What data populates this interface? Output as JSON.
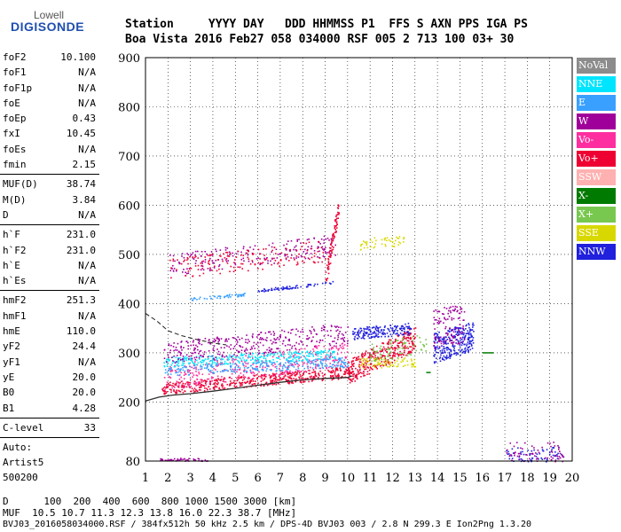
{
  "logo": {
    "top": "Lowell",
    "main": "DIGISONDE"
  },
  "header": {
    "line1": "Station     YYYY DAY   DDD HHMMSS P1  FFS S AXN PPS IGA PS",
    "line2": "Boa Vista 2016 Feb27 058 034000 RSF 005 2 713 100 03+ 30"
  },
  "sidebar": {
    "group1": [
      {
        "k": "foF2",
        "v": "10.100"
      },
      {
        "k": "foF1",
        "v": "N/A"
      },
      {
        "k": "foF1p",
        "v": "N/A"
      },
      {
        "k": "foE",
        "v": "N/A"
      },
      {
        "k": "foEp",
        "v": "0.43"
      },
      {
        "k": "fxI",
        "v": "10.45"
      },
      {
        "k": "foEs",
        "v": "N/A"
      },
      {
        "k": "fmin",
        "v": "2.15"
      }
    ],
    "group2": [
      {
        "k": "MUF(D)",
        "v": "38.74"
      },
      {
        "k": "M(D)",
        "v": "3.84"
      },
      {
        "k": "D",
        "v": "N/A"
      }
    ],
    "group3": [
      {
        "k": "h`F",
        "v": "231.0"
      },
      {
        "k": "h`F2",
        "v": "231.0"
      },
      {
        "k": "h`E",
        "v": "N/A"
      },
      {
        "k": "h`Es",
        "v": "N/A"
      }
    ],
    "group4": [
      {
        "k": "hmF2",
        "v": "251.3"
      },
      {
        "k": "hmF1",
        "v": "N/A"
      },
      {
        "k": "hmE",
        "v": "110.0"
      },
      {
        "k": "yF2",
        "v": "24.4"
      },
      {
        "k": "yF1",
        "v": "N/A"
      },
      {
        "k": "yE",
        "v": "20.0"
      },
      {
        "k": "B0",
        "v": "20.0"
      },
      {
        "k": "B1",
        "v": "4.28"
      }
    ],
    "clevel": {
      "k": "C-level",
      "v": "33"
    },
    "auto": [
      "Auto:",
      "Artist5",
      "500200"
    ]
  },
  "legend": [
    {
      "label": "NoVal",
      "color": "#8c8c8c"
    },
    {
      "label": "NNE",
      "color": "#00e5ff"
    },
    {
      "label": "E",
      "color": "#3aa0ff"
    },
    {
      "label": "W",
      "color": "#a0009a"
    },
    {
      "label": "Vo-",
      "color": "#ff2ea0"
    },
    {
      "label": "Vo+",
      "color": "#ee0033"
    },
    {
      "label": "SSW",
      "color": "#ffb0b0"
    },
    {
      "label": "X-",
      "color": "#007a00"
    },
    {
      "label": "X+",
      "color": "#78c850"
    },
    {
      "label": "SSE",
      "color": "#d8d800"
    },
    {
      "label": "NNW",
      "color": "#2020dd"
    }
  ],
  "footer": {
    "d_line": "D      100  200  400  600  800 1000 1500 3000 [km]",
    "muf_line": "MUF  10.5 10.7 11.3 12.3 13.8 16.0 22.3 38.7 [MHz]",
    "file_line": "BVJ03_2016058034000.RSF / 384fx512h 50 kHz 2.5 km / DPS-4D BVJ03 003 / 2.8 N 299.3 E Ion2Png 1.3.20"
  },
  "chart_data": {
    "type": "scatter",
    "title": "",
    "xlabel": "",
    "ylabel": "",
    "xlim": [
      1,
      20
    ],
    "ylim": [
      80,
      900
    ],
    "xticks": [
      1,
      2,
      3,
      4,
      5,
      6,
      7,
      8,
      9,
      10,
      11,
      12,
      13,
      14,
      15,
      16,
      17,
      18,
      19,
      20
    ],
    "yticks": [
      200,
      300,
      400,
      500,
      600,
      700,
      800,
      900
    ],
    "ytick_bottom_label": "80",
    "grid": true,
    "clusters": [
      {
        "name": "F2 O-trace low",
        "color": "#ee0033",
        "x": [
          1.7,
          10.2
        ],
        "y0": 228,
        "y1": 262,
        "spread": 12,
        "n": 500
      },
      {
        "name": "F2 O-trace upper",
        "color": "#ff2ea0",
        "x": [
          1.8,
          10.0
        ],
        "y0": 250,
        "y1": 300,
        "spread": 25,
        "n": 350
      },
      {
        "name": "F2 NNE",
        "color": "#00e5ff",
        "x": [
          1.8,
          9.5
        ],
        "y0": 282,
        "y1": 298,
        "spread": 10,
        "n": 300
      },
      {
        "name": "F2 E",
        "color": "#3aa0ff",
        "x": [
          1.8,
          10.0
        ],
        "y0": 262,
        "y1": 282,
        "spread": 10,
        "n": 250
      },
      {
        "name": "F2 W",
        "color": "#a0009a",
        "x": [
          1.8,
          10.0
        ],
        "y0": 300,
        "y1": 340,
        "spread": 22,
        "n": 350
      },
      {
        "name": "F2 Vo+ ext",
        "color": "#ee0033",
        "x": [
          10.0,
          13.0
        ],
        "y0": 262,
        "y1": 330,
        "spread": 25,
        "n": 350
      },
      {
        "name": "F2 NNW",
        "color": "#2020dd",
        "x": [
          10.2,
          12.8
        ],
        "y0": 340,
        "y1": 350,
        "spread": 12,
        "n": 180
      },
      {
        "name": "Spread NNW",
        "color": "#2020dd",
        "x": [
          13.8,
          15.6
        ],
        "y0": 310,
        "y1": 335,
        "spread": 30,
        "n": 280
      },
      {
        "name": "Spread W",
        "color": "#a0009a",
        "x": [
          13.8,
          15.2
        ],
        "y0": 350,
        "y1": 360,
        "spread": 40,
        "n": 120
      },
      {
        "name": "SSE low",
        "color": "#d8d800",
        "x": [
          10.5,
          13.0
        ],
        "y0": 280,
        "y1": 282,
        "spread": 10,
        "n": 80
      },
      {
        "name": "X+ traces",
        "color": "#78c850",
        "x": [
          11.0,
          13.5
        ],
        "y0": 300,
        "y1": 320,
        "spread": 20,
        "n": 80
      },
      {
        "name": "Multihop W",
        "color": "#a0009a",
        "x": [
          2.0,
          9.5
        ],
        "y0": 480,
        "y1": 520,
        "spread": 22,
        "n": 200
      },
      {
        "name": "Multihop Vo+",
        "color": "#ee0033",
        "x": [
          2.0,
          9.3
        ],
        "y0": 470,
        "y1": 510,
        "spread": 22,
        "n": 160
      },
      {
        "name": "Multihop SSE",
        "color": "#d8d800",
        "x": [
          10.5,
          12.5
        ],
        "y0": 520,
        "y1": 530,
        "spread": 12,
        "n": 50
      },
      {
        "name": "Line NNW",
        "color": "#2020dd",
        "x": [
          6.0,
          9.5
        ],
        "y0": 427,
        "y1": 445,
        "spread": 3,
        "n": 70
      },
      {
        "name": "Line NNE",
        "color": "#3aa0ff",
        "x": [
          3.0,
          5.5
        ],
        "y0": 410,
        "y1": 420,
        "spread": 3,
        "n": 50
      },
      {
        "name": "Bottom W",
        "color": "#a0009a",
        "x": [
          1.6,
          3.8
        ],
        "y0": 84,
        "y1": 84,
        "spread": 3,
        "n": 50
      },
      {
        "name": "Bottom NNW",
        "color": "#2020dd",
        "x": [
          17.0,
          19.6
        ],
        "y0": 90,
        "y1": 90,
        "spread": 20,
        "n": 90
      },
      {
        "name": "Bottom W right",
        "color": "#a0009a",
        "x": [
          17.0,
          19.6
        ],
        "y0": 95,
        "y1": 95,
        "spread": 25,
        "n": 90
      },
      {
        "name": "Vertical streak",
        "color": "#ee0033",
        "x": [
          9.0,
          9.6
        ],
        "y0": 450,
        "y1": 600,
        "spread": 20,
        "n": 80
      }
    ],
    "profile_curve": {
      "color": "#303030",
      "x": [
        1.0,
        1.6,
        2.2,
        3.0,
        4.0,
        5.0,
        6.0,
        7.0,
        8.0,
        9.0,
        9.6,
        10.0,
        10.2
      ],
      "y": [
        202,
        210,
        214,
        217,
        222,
        228,
        234,
        240,
        245,
        248,
        249,
        250,
        253
      ]
    },
    "profile_dashed": {
      "color": "#303030",
      "x": [
        1.0,
        1.5,
        2.0,
        2.6,
        3.2,
        4.0,
        4.6
      ],
      "y": [
        380,
        365,
        345,
        335,
        328,
        320,
        316
      ]
    },
    "green_lines": [
      {
        "x": [
          13.5,
          13.7
        ],
        "y": [
          260,
          260
        ],
        "color": "#007a00"
      },
      {
        "x": [
          16.0,
          16.5
        ],
        "y": [
          300,
          300
        ],
        "color": "#007a00"
      }
    ]
  }
}
